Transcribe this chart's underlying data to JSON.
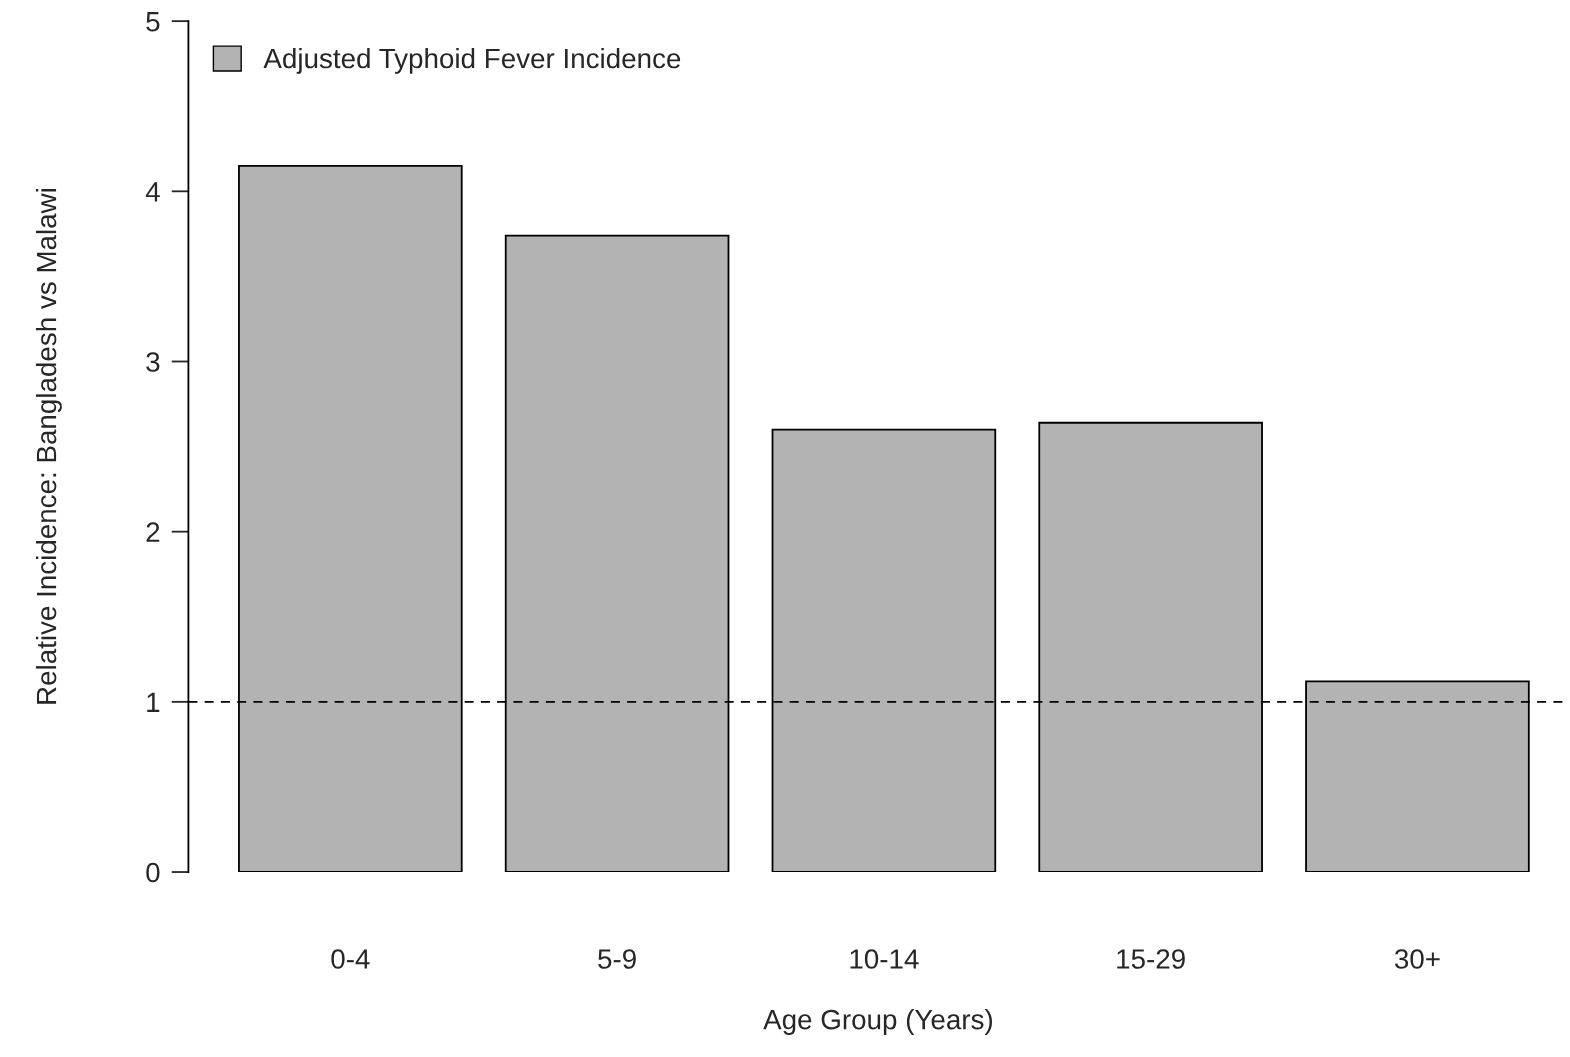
{
  "chart_data": {
    "type": "bar",
    "xlabel": "Age Group (Years)",
    "ylabel": "Relative Incidence: Bangladesh vs Malawi",
    "categories": [
      "0-4",
      "5-9",
      "10-14",
      "15-29",
      "30+"
    ],
    "series": [
      {
        "name": "Adjusted Typhoid Fever Incidence",
        "color": "#b3b3b3",
        "values": [
          4.15,
          3.74,
          2.6,
          2.64,
          1.12
        ]
      }
    ],
    "ylim": [
      0,
      5
    ],
    "yticks": [
      0,
      1,
      2,
      3,
      4,
      5
    ],
    "ref_lines": [
      {
        "axis": "y",
        "value": 1,
        "color": "#000000",
        "line_style": "dashed"
      }
    ],
    "grid": false,
    "legend": "top left"
  }
}
